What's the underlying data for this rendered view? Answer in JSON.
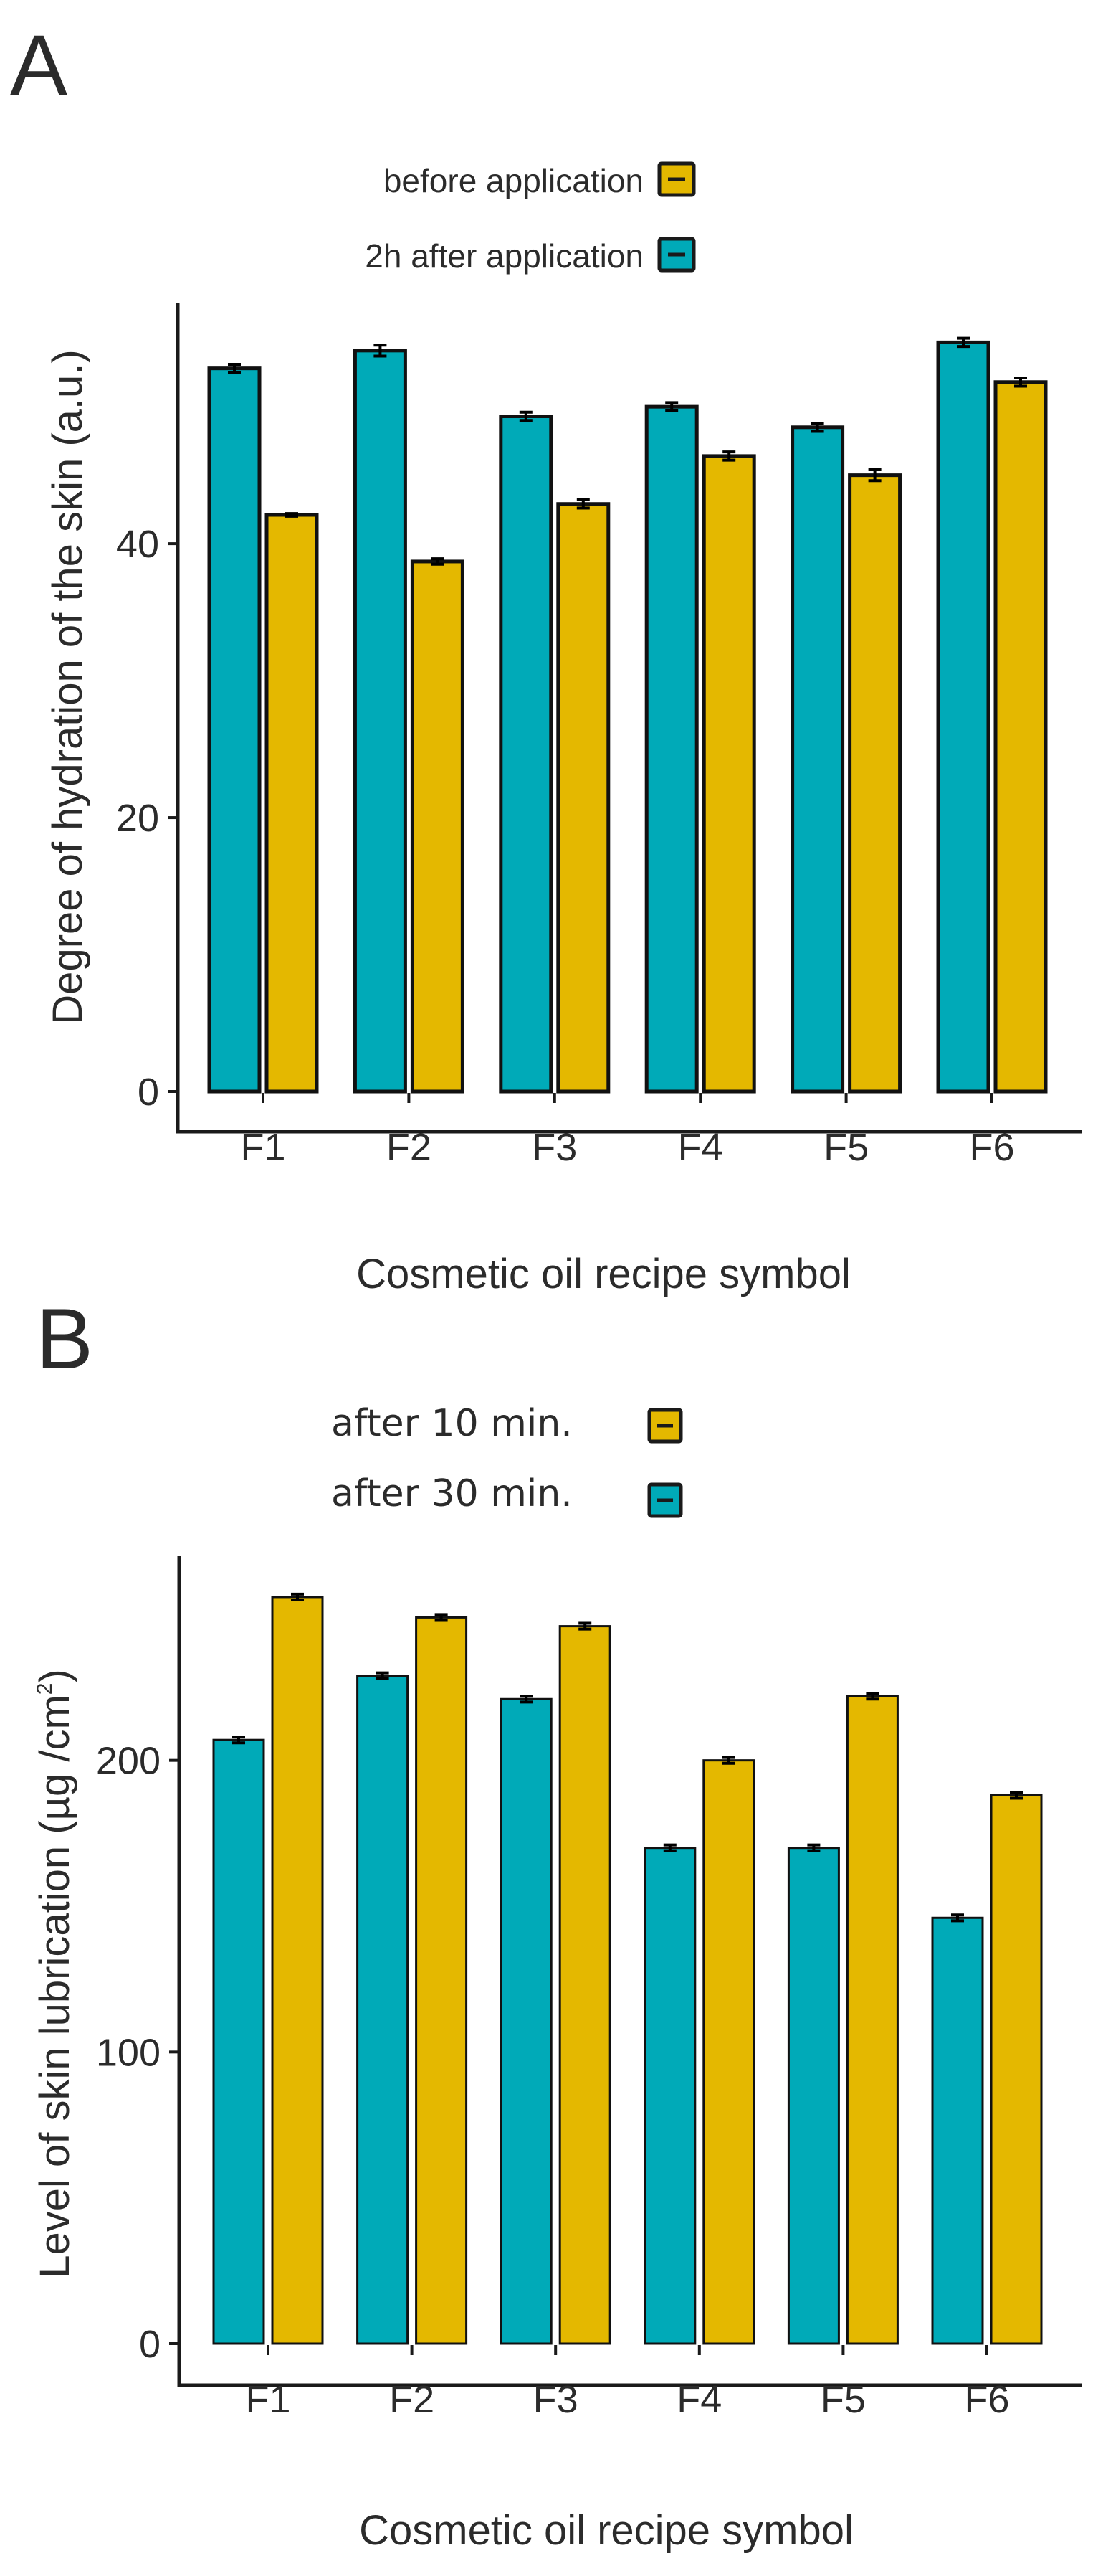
{
  "colors": {
    "teal": "#00aab8",
    "gold": "#e4b800",
    "axis": "#1a1a1a",
    "errorbar": "#000000"
  },
  "chart_data": [
    {
      "panel": "A",
      "type": "bar",
      "title": "",
      "xlabel": "Cosmetic oil recipe symbol",
      "ylabel": "Degree of hydration of the skin (a.u.)",
      "ylim": [
        0,
        57.6
      ],
      "yticks": [
        0,
        20,
        40
      ],
      "categories": [
        "F1",
        "F2",
        "F3",
        "F4",
        "F5",
        "F6"
      ],
      "legend_position": "top",
      "legend": [
        {
          "label": "before application",
          "color": "#e4b800"
        },
        {
          "label": "2h after application",
          "color": "#00aab8"
        }
      ],
      "series": [
        {
          "name": "2h after application",
          "color": "#00aab8",
          "values": [
            52.8,
            54.1,
            49.3,
            50.0,
            48.5,
            54.7
          ],
          "errors": [
            0.3,
            0.4,
            0.3,
            0.3,
            0.3,
            0.3
          ]
        },
        {
          "name": "before application",
          "color": "#e4b800",
          "values": [
            42.1,
            38.7,
            42.9,
            46.4,
            45.0,
            51.8
          ],
          "errors": [
            0.1,
            0.2,
            0.3,
            0.3,
            0.4,
            0.3
          ]
        }
      ]
    },
    {
      "panel": "B",
      "type": "bar",
      "title": "",
      "xlabel": "Cosmetic oil recipe symbol",
      "ylabel_parts": [
        "Level of skin lubrication (µg  /cm",
        "2",
        ")"
      ],
      "ylim": [
        0,
        270
      ],
      "yticks": [
        0,
        100,
        200
      ],
      "categories": [
        "F1",
        "F2",
        "F3",
        "F4",
        "F5",
        "F6"
      ],
      "legend_position": "top",
      "legend": [
        {
          "label": "after 10 min.",
          "color": "#e4b800"
        },
        {
          "label": "after 30 min.",
          "color": "#00aab8"
        }
      ],
      "series": [
        {
          "name": "after 30 min.",
          "color": "#00aab8",
          "values": [
            207,
            229,
            221,
            170,
            170,
            146
          ],
          "errors": [
            1.0,
            1.0,
            1.0,
            1.0,
            1.0,
            1.0
          ]
        },
        {
          "name": "after 10 min.",
          "color": "#e4b800",
          "values": [
            256,
            249,
            246,
            200,
            222,
            188
          ],
          "errors": [
            1.0,
            1.0,
            1.0,
            1.0,
            1.0,
            1.0
          ]
        }
      ]
    }
  ]
}
